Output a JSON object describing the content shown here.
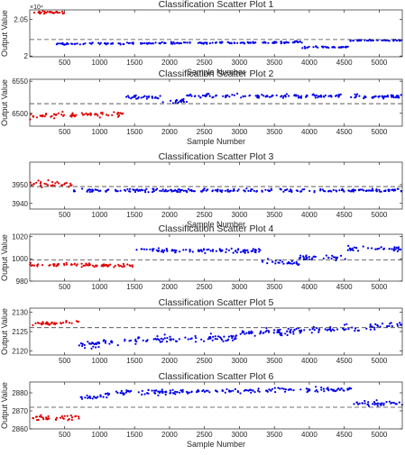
{
  "figure": {
    "background": "#ffffff",
    "colors": {
      "class_red": "#e00000",
      "class_blue": "#0000e6",
      "threshold": "#444444",
      "axes": "#262626"
    }
  },
  "chart_data": [
    {
      "type": "scatter",
      "title": "Classification Scatter Plot 1",
      "xlabel": "Sample Number",
      "ylabel": "Output Value",
      "exponent_label": "×10⁴",
      "xlim": [
        1,
        5330
      ],
      "ylim": [
        19990,
        20630
      ],
      "xticks": [
        500,
        1000,
        1500,
        2000,
        2500,
        3000,
        3500,
        4000,
        4500,
        5000
      ],
      "yticks": [
        20000,
        20500
      ],
      "ytick_labels": [
        "2",
        "2.05"
      ],
      "threshold": 20225,
      "series": [
        {
          "color": "#e00000",
          "noise": 18,
          "segments": [
            {
              "x": [
                1,
                580
              ],
              "y": [
                20595,
                20595
              ]
            }
          ]
        },
        {
          "color": "#0000e6",
          "noise": 12,
          "segments": [
            {
              "x": [
                380,
                3900
              ],
              "y": [
                20165,
                20190
              ]
            },
            {
              "x": [
                3900,
                4580
              ],
              "y": [
                20120,
                20125
              ]
            },
            {
              "x": [
                4580,
                5330
              ],
              "y": [
                20215,
                20215
              ]
            }
          ]
        }
      ]
    },
    {
      "type": "scatter",
      "title": "Classification Scatter Plot 2",
      "xlabel": "Sample Number",
      "ylabel": "Output Value",
      "xlim": [
        1,
        5330
      ],
      "ylim": [
        6480,
        6553
      ],
      "xticks": [
        500,
        1000,
        1500,
        2000,
        2500,
        3000,
        3500,
        4000,
        4500,
        5000
      ],
      "yticks": [
        6500,
        6550
      ],
      "threshold": 6515,
      "series": [
        {
          "color": "#e00000",
          "noise": 4,
          "segments": [
            {
              "x": [
                1,
                1340
              ],
              "y": [
                6495,
                6500
              ]
            }
          ]
        },
        {
          "color": "#0000e6",
          "noise": 3,
          "segments": [
            {
              "x": [
                1360,
                1900
              ],
              "y": [
                6526,
                6524
              ]
            },
            {
              "x": [
                1900,
                2250
              ],
              "y": [
                6518,
                6520
              ]
            },
            {
              "x": [
                2250,
                5330
              ],
              "y": [
                6527,
                6526
              ]
            }
          ]
        }
      ]
    },
    {
      "type": "scatter",
      "title": "Classification Scatter Plot 3",
      "xlabel": "Sample Number",
      "ylabel": "",
      "xlim": [
        1,
        5330
      ],
      "ylim": [
        3937,
        3962
      ],
      "xticks": [
        500,
        1000,
        1500,
        2000,
        2500,
        3000,
        3500,
        4000,
        4500,
        5000
      ],
      "yticks": [
        3940,
        3950
      ],
      "threshold": 3949,
      "series": [
        {
          "color": "#e00000",
          "noise": 1.6,
          "segments": [
            {
              "x": [
                1,
                620
              ],
              "y": [
                3950.5,
                3950
              ]
            }
          ]
        },
        {
          "color": "#0000e6",
          "noise": 0.8,
          "segments": [
            {
              "x": [
                620,
                5330
              ],
              "y": [
                3946.8,
                3947
              ]
            }
          ]
        }
      ]
    },
    {
      "type": "scatter",
      "title": "Classification Scatter Plot 4",
      "xlabel": "",
      "ylabel": "Output Value",
      "xlim": [
        1,
        5330
      ],
      "ylim": [
        980,
        1022
      ],
      "xticks": [
        500,
        1000,
        1500,
        2000,
        2500,
        3000,
        3500,
        4000,
        4500,
        5000
      ],
      "yticks": [
        980,
        1000,
        1020
      ],
      "threshold": 999,
      "series": [
        {
          "color": "#e00000",
          "noise": 1.5,
          "segments": [
            {
              "x": [
                1,
                1520
              ],
              "y": [
                995,
                994
              ]
            }
          ]
        },
        {
          "color": "#0000e6",
          "noise": 2.2,
          "segments": [
            {
              "x": [
                1520,
                3300
              ],
              "y": [
                1008,
                1007
              ]
            },
            {
              "x": [
                3300,
                3850
              ],
              "y": [
                998,
                996
              ]
            },
            {
              "x": [
                3850,
                4550
              ],
              "y": [
                1001,
                1001
              ]
            },
            {
              "x": [
                4550,
                5330
              ],
              "y": [
                1009,
                1009
              ]
            }
          ]
        }
      ]
    },
    {
      "type": "scatter",
      "title": "Classification Scatter Plot 5",
      "xlabel": "",
      "ylabel": "Output Value",
      "xlim": [
        1,
        5330
      ],
      "ylim": [
        2119,
        2131
      ],
      "xticks": [
        500,
        1000,
        1500,
        2000,
        2500,
        3000,
        3500,
        4000,
        4500,
        5000
      ],
      "yticks": [
        2120,
        2125,
        2130
      ],
      "threshold": 2126,
      "series": [
        {
          "color": "#e00000",
          "noise": 0.5,
          "segments": [
            {
              "x": [
                1,
                700
              ],
              "y": [
                2127,
                2127.5
              ]
            }
          ]
        },
        {
          "color": "#0000e6",
          "noise": 0.8,
          "segments": [
            {
              "x": [
                700,
                1500
              ],
              "y": [
                2121.5,
                2122.5
              ]
            },
            {
              "x": [
                1500,
                3000
              ],
              "y": [
                2122.8,
                2123.5
              ]
            },
            {
              "x": [
                3000,
                5330
              ],
              "y": [
                2124.5,
                2126.6
              ]
            }
          ]
        }
      ]
    },
    {
      "type": "scatter",
      "title": "Classification Scatter Plot 6",
      "xlabel": "Sample Number",
      "ylabel": "Output Value",
      "xlim": [
        1,
        5330
      ],
      "ylim": [
        2860,
        2886
      ],
      "xticks": [
        500,
        1000,
        1500,
        2000,
        2500,
        3000,
        3500,
        4000,
        4500,
        5000
      ],
      "yticks": [
        2860,
        2870,
        2880
      ],
      "threshold": 2872,
      "series": [
        {
          "color": "#e00000",
          "noise": 1.6,
          "segments": [
            {
              "x": [
                1,
                720
              ],
              "y": [
                2866,
                2867
              ]
            }
          ]
        },
        {
          "color": "#0000e6",
          "noise": 1.3,
          "segments": [
            {
              "x": [
                720,
                1200
              ],
              "y": [
                2877,
                2879
              ]
            },
            {
              "x": [
                1200,
                4600
              ],
              "y": [
                2880,
                2882
              ]
            },
            {
              "x": [
                4600,
                5330
              ],
              "y": [
                2874,
                2874
              ]
            }
          ]
        }
      ]
    }
  ]
}
